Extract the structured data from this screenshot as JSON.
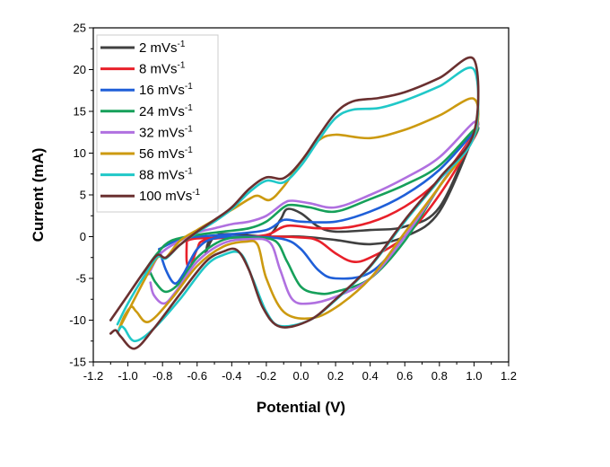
{
  "chart_data": {
    "type": "line",
    "title": "",
    "xlabel": "Potential (V)",
    "ylabel": "Current (mA)",
    "xlim": [
      -1.2,
      1.2
    ],
    "ylim": [
      -15,
      25
    ],
    "xticks": [
      "-1.2",
      "-1.0",
      "-0.8",
      "-0.6",
      "-0.4",
      "-0.2",
      "0.0",
      "0.2",
      "0.4",
      "0.6",
      "0.8",
      "1.0",
      "1.2"
    ],
    "xtick_values": [
      -1.2,
      -1.0,
      -0.8,
      -0.6,
      -0.4,
      -0.2,
      0.0,
      0.2,
      0.4,
      0.6,
      0.8,
      1.0,
      1.2
    ],
    "yticks": [
      "-15",
      "-10",
      "-5",
      "0",
      "5",
      "10",
      "15",
      "20",
      "25"
    ],
    "ytick_values": [
      -15,
      -10,
      -5,
      0,
      5,
      10,
      15,
      20,
      25
    ],
    "grid": false,
    "legend_position": "top-left",
    "series": [
      {
        "name": "2 mVs",
        "sup": "-1",
        "color": "#404040",
        "points": [
          [
            -0.55,
            -1.9
          ],
          [
            -0.52,
            -0.3
          ],
          [
            -0.4,
            -0.1
          ],
          [
            -0.2,
            0
          ],
          [
            -0.12,
            2
          ],
          [
            -0.08,
            3.3
          ],
          [
            0,
            2.8
          ],
          [
            0.1,
            1.2
          ],
          [
            0.2,
            0.6
          ],
          [
            0.4,
            0.8
          ],
          [
            0.6,
            1.2
          ],
          [
            0.8,
            3.5
          ],
          [
            1.0,
            12.5
          ],
          [
            1.0,
            12.2
          ],
          [
            0.8,
            3
          ],
          [
            0.6,
            0
          ],
          [
            0.4,
            -0.9
          ],
          [
            0.2,
            -0.4
          ],
          [
            0,
            0
          ],
          [
            -0.2,
            0
          ],
          [
            -0.4,
            0.3
          ],
          [
            -0.5,
            0
          ],
          [
            -0.55,
            -1.9
          ]
        ]
      },
      {
        "name": "8 mVs",
        "sup": "-1",
        "color": "#e8202a",
        "points": [
          [
            -0.66,
            -0.5
          ],
          [
            -0.6,
            -0.2
          ],
          [
            -0.4,
            -0.1
          ],
          [
            -0.2,
            0.2
          ],
          [
            -0.08,
            1.3
          ],
          [
            0.1,
            1
          ],
          [
            0.3,
            1.2
          ],
          [
            0.5,
            2.5
          ],
          [
            0.7,
            5
          ],
          [
            0.85,
            8
          ],
          [
            1.0,
            12.3
          ],
          [
            1.0,
            11.8
          ],
          [
            0.8,
            5
          ],
          [
            0.6,
            0
          ],
          [
            0.4,
            -2.5
          ],
          [
            0.3,
            -3
          ],
          [
            0.2,
            -2
          ],
          [
            0.1,
            -0.5
          ],
          [
            0,
            -0.1
          ],
          [
            -0.3,
            0
          ],
          [
            -0.55,
            -0.4
          ],
          [
            -0.6,
            -1.5
          ],
          [
            -0.64,
            -3.6
          ],
          [
            -0.66,
            -3
          ],
          [
            -0.66,
            -0.5
          ]
        ]
      },
      {
        "name": "16 mVs",
        "sup": "-1",
        "color": "#1f5fd8",
        "points": [
          [
            -0.82,
            -1.5
          ],
          [
            -0.7,
            -0.3
          ],
          [
            -0.6,
            0
          ],
          [
            -0.4,
            0.3
          ],
          [
            -0.2,
            0.8
          ],
          [
            -0.1,
            2
          ],
          [
            0.0,
            1.8
          ],
          [
            0.2,
            1.8
          ],
          [
            0.4,
            3
          ],
          [
            0.6,
            5
          ],
          [
            0.8,
            8
          ],
          [
            1.0,
            12.5
          ],
          [
            1.0,
            12
          ],
          [
            0.8,
            6
          ],
          [
            0.6,
            0
          ],
          [
            0.4,
            -4.3
          ],
          [
            0.2,
            -5
          ],
          [
            0.1,
            -4
          ],
          [
            0.0,
            -1.5
          ],
          [
            -0.1,
            -0.3
          ],
          [
            -0.3,
            0
          ],
          [
            -0.5,
            -0.2
          ],
          [
            -0.6,
            -1.5
          ],
          [
            -0.68,
            -4.5
          ],
          [
            -0.73,
            -5.6
          ],
          [
            -0.78,
            -4
          ],
          [
            -0.82,
            -1.5
          ]
        ]
      },
      {
        "name": "24 mVs",
        "sup": "-1",
        "color": "#16a05a",
        "points": [
          [
            -0.9,
            -4
          ],
          [
            -0.83,
            -2
          ],
          [
            -0.75,
            -0.5
          ],
          [
            -0.6,
            0.2
          ],
          [
            -0.45,
            0.6
          ],
          [
            -0.3,
            1
          ],
          [
            -0.2,
            1.8
          ],
          [
            -0.1,
            3.5
          ],
          [
            -0.05,
            3.8
          ],
          [
            0.05,
            3.5
          ],
          [
            0.2,
            3
          ],
          [
            0.4,
            4.5
          ],
          [
            0.6,
            6.2
          ],
          [
            0.8,
            8.5
          ],
          [
            1.0,
            12.8
          ],
          [
            1.0,
            12
          ],
          [
            0.8,
            6
          ],
          [
            0.6,
            -0.5
          ],
          [
            0.4,
            -5
          ],
          [
            0.2,
            -6.6
          ],
          [
            0.1,
            -6.8
          ],
          [
            0,
            -6
          ],
          [
            -0.08,
            -3
          ],
          [
            -0.15,
            -0.5
          ],
          [
            -0.3,
            -0.1
          ],
          [
            -0.45,
            -0.4
          ],
          [
            -0.6,
            -2.5
          ],
          [
            -0.7,
            -5.5
          ],
          [
            -0.78,
            -6.6
          ],
          [
            -0.84,
            -5.5
          ],
          [
            -0.88,
            -4
          ],
          [
            -0.9,
            -4.5
          ]
        ]
      },
      {
        "name": "32 mVs",
        "sup": "-1",
        "color": "#b070e0",
        "points": [
          [
            -0.88,
            -4.5
          ],
          [
            -0.83,
            -2.5
          ],
          [
            -0.78,
            -1.5
          ],
          [
            -0.7,
            -0.5
          ],
          [
            -0.6,
            0.5
          ],
          [
            -0.5,
            1
          ],
          [
            -0.4,
            1.5
          ],
          [
            -0.3,
            1.8
          ],
          [
            -0.2,
            2.5
          ],
          [
            -0.1,
            4
          ],
          [
            -0.05,
            4.3
          ],
          [
            0.05,
            4
          ],
          [
            0.2,
            3.5
          ],
          [
            0.4,
            5
          ],
          [
            0.6,
            7
          ],
          [
            0.8,
            9.5
          ],
          [
            1.0,
            13.7
          ],
          [
            1.0,
            12.2
          ],
          [
            0.8,
            6
          ],
          [
            0.6,
            0
          ],
          [
            0.4,
            -5
          ],
          [
            0.2,
            -7.2
          ],
          [
            0.05,
            -8
          ],
          [
            -0.05,
            -7.5
          ],
          [
            -0.12,
            -4
          ],
          [
            -0.18,
            -0.7
          ],
          [
            -0.3,
            -0.3
          ],
          [
            -0.45,
            -0.8
          ],
          [
            -0.6,
            -3
          ],
          [
            -0.72,
            -6.5
          ],
          [
            -0.79,
            -8
          ],
          [
            -0.85,
            -7
          ],
          [
            -0.87,
            -5.5
          ]
        ]
      },
      {
        "name": "56 mVs",
        "sup": "-1",
        "color": "#cc9a10",
        "points": [
          [
            -1.05,
            -11
          ],
          [
            -1.0,
            -9
          ],
          [
            -0.9,
            -5
          ],
          [
            -0.83,
            -2.5
          ],
          [
            -0.78,
            -2.5
          ],
          [
            -0.7,
            -0.5
          ],
          [
            -0.6,
            0.8
          ],
          [
            -0.5,
            2
          ],
          [
            -0.4,
            3.2
          ],
          [
            -0.3,
            4.5
          ],
          [
            -0.25,
            4.9
          ],
          [
            -0.18,
            4.4
          ],
          [
            -0.1,
            6
          ],
          [
            0,
            9
          ],
          [
            0.1,
            11.5
          ],
          [
            0.2,
            12.2
          ],
          [
            0.4,
            11.8
          ],
          [
            0.6,
            12.8
          ],
          [
            0.8,
            14.5
          ],
          [
            1.0,
            16.5
          ],
          [
            1.0,
            12
          ],
          [
            0.8,
            6
          ],
          [
            0.6,
            0.5
          ],
          [
            0.4,
            -5
          ],
          [
            0.2,
            -8.5
          ],
          [
            0.05,
            -9.8
          ],
          [
            -0.1,
            -9
          ],
          [
            -0.2,
            -5
          ],
          [
            -0.25,
            -1
          ],
          [
            -0.32,
            -0.6
          ],
          [
            -0.45,
            -1.2
          ],
          [
            -0.6,
            -3.5
          ],
          [
            -0.75,
            -7.5
          ],
          [
            -0.88,
            -10.2
          ],
          [
            -0.95,
            -9
          ],
          [
            -0.98,
            -8.4
          ],
          [
            -1.02,
            -9.5
          ],
          [
            -1.05,
            -11
          ]
        ]
      },
      {
        "name": "88 mVs",
        "sup": "-1",
        "color": "#20c8c8",
        "points": [
          [
            -1.06,
            -10.5
          ],
          [
            -1.0,
            -8
          ],
          [
            -0.9,
            -4.5
          ],
          [
            -0.83,
            -2.4
          ],
          [
            -0.78,
            -2.6
          ],
          [
            -0.7,
            -1
          ],
          [
            -0.6,
            0.5
          ],
          [
            -0.5,
            1.8
          ],
          [
            -0.4,
            3.3
          ],
          [
            -0.3,
            5.3
          ],
          [
            -0.2,
            6.7
          ],
          [
            -0.1,
            6.5
          ],
          [
            0,
            8.5
          ],
          [
            0.1,
            11.5
          ],
          [
            0.2,
            14.2
          ],
          [
            0.3,
            15.2
          ],
          [
            0.45,
            15.4
          ],
          [
            0.6,
            16.3
          ],
          [
            0.8,
            18
          ],
          [
            1.0,
            20
          ],
          [
            1.0,
            12
          ],
          [
            0.8,
            6.8
          ],
          [
            0.6,
            1.8
          ],
          [
            0.4,
            -3.6
          ],
          [
            0.2,
            -7.6
          ],
          [
            0.05,
            -10
          ],
          [
            -0.12,
            -10.7
          ],
          [
            -0.2,
            -9
          ],
          [
            -0.28,
            -5
          ],
          [
            -0.35,
            -2
          ],
          [
            -0.45,
            -2.2
          ],
          [
            -0.55,
            -3.5
          ],
          [
            -0.7,
            -7.5
          ],
          [
            -0.85,
            -11
          ],
          [
            -0.96,
            -12.5
          ],
          [
            -1.02,
            -11
          ],
          [
            -1.04,
            -10.8
          ],
          [
            -1.06,
            -11.5
          ]
        ]
      },
      {
        "name": "100 mVs",
        "sup": "-1",
        "color": "#6a3030",
        "points": [
          [
            -1.1,
            -10
          ],
          [
            -1.0,
            -7
          ],
          [
            -0.9,
            -4
          ],
          [
            -0.83,
            -2.2
          ],
          [
            -0.78,
            -2.5
          ],
          [
            -0.7,
            -1
          ],
          [
            -0.6,
            0.6
          ],
          [
            -0.5,
            2
          ],
          [
            -0.4,
            3.5
          ],
          [
            -0.3,
            5.7
          ],
          [
            -0.2,
            7.1
          ],
          [
            -0.1,
            7.0
          ],
          [
            0,
            9
          ],
          [
            0.1,
            12
          ],
          [
            0.2,
            14.8
          ],
          [
            0.3,
            16.2
          ],
          [
            0.45,
            16.6
          ],
          [
            0.6,
            17.3
          ],
          [
            0.8,
            19
          ],
          [
            1.0,
            21.2
          ],
          [
            1.0,
            12.5
          ],
          [
            0.8,
            7
          ],
          [
            0.6,
            2
          ],
          [
            0.4,
            -3.5
          ],
          [
            0.2,
            -7.5
          ],
          [
            0.05,
            -10
          ],
          [
            -0.12,
            -10.8
          ],
          [
            -0.22,
            -8.5
          ],
          [
            -0.3,
            -4
          ],
          [
            -0.37,
            -1.6
          ],
          [
            -0.45,
            -1.8
          ],
          [
            -0.55,
            -3
          ],
          [
            -0.7,
            -6.9
          ],
          [
            -0.85,
            -11
          ],
          [
            -0.96,
            -13.4
          ],
          [
            -1.04,
            -12
          ],
          [
            -1.07,
            -11.2
          ],
          [
            -1.1,
            -11.6
          ]
        ]
      }
    ]
  }
}
